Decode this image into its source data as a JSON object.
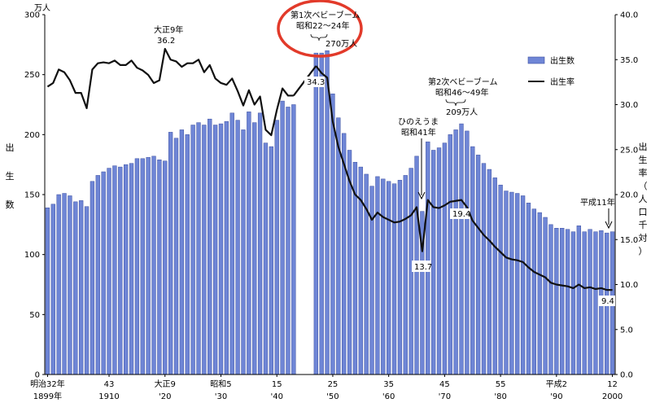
{
  "chart_data": {
    "type": "bar",
    "left_unit": "万人",
    "left_axis_label": [
      "出",
      "生",
      "数"
    ],
    "right_axis_label": [
      "出",
      "生",
      "率",
      "（",
      "人",
      "口",
      "千",
      "対",
      "）"
    ],
    "left_ylim": [
      0,
      300
    ],
    "left_ticks": [
      "0",
      "50",
      "100",
      "150",
      "200",
      "250",
      "300"
    ],
    "right_ylim": [
      0,
      40
    ],
    "right_ticks": [
      "0.0",
      "5.0",
      "10.0",
      "15.0",
      "20.0",
      "25.0",
      "30.0",
      "35.0",
      "40.0"
    ],
    "grid": false,
    "legend_position": "top-right",
    "x_tick_labels": [
      {
        "year": 1899,
        "line1": "明治32年",
        "line2": "1899年"
      },
      {
        "year": 1910,
        "line1": "43",
        "line2": "1910"
      },
      {
        "year": 1920,
        "line1": "大正9",
        "line2": "'20"
      },
      {
        "year": 1930,
        "line1": "昭和5",
        "line2": "'30"
      },
      {
        "year": 1940,
        "line1": "15",
        "line2": "'40"
      },
      {
        "year": 1950,
        "line1": "25",
        "line2": "'50"
      },
      {
        "year": 1960,
        "line1": "35",
        "line2": "'60"
      },
      {
        "year": 1970,
        "line1": "45",
        "line2": "'70"
      },
      {
        "year": 1980,
        "line1": "55",
        "line2": "'80"
      },
      {
        "year": 1990,
        "line1": "平成2",
        "line2": "'90"
      },
      {
        "year": 2000,
        "line1": "12",
        "line2": "2000"
      }
    ],
    "series": [
      {
        "name": "出生数",
        "type": "bar",
        "axis": "left",
        "color": "#6f86d6",
        "x": [
          1899,
          1900,
          1901,
          1902,
          1903,
          1904,
          1905,
          1906,
          1907,
          1908,
          1909,
          1910,
          1911,
          1912,
          1913,
          1914,
          1915,
          1916,
          1917,
          1918,
          1919,
          1920,
          1921,
          1922,
          1923,
          1924,
          1925,
          1926,
          1927,
          1928,
          1929,
          1930,
          1931,
          1932,
          1933,
          1934,
          1935,
          1936,
          1937,
          1938,
          1939,
          1940,
          1941,
          1942,
          1943,
          1947,
          1948,
          1949,
          1950,
          1951,
          1952,
          1953,
          1954,
          1955,
          1956,
          1957,
          1958,
          1959,
          1960,
          1961,
          1962,
          1963,
          1964,
          1965,
          1966,
          1967,
          1968,
          1969,
          1970,
          1971,
          1972,
          1973,
          1974,
          1975,
          1976,
          1977,
          1978,
          1979,
          1980,
          1981,
          1982,
          1983,
          1984,
          1985,
          1986,
          1987,
          1988,
          1989,
          1990,
          1991,
          1992,
          1993,
          1994,
          1995,
          1996,
          1997,
          1998,
          1999,
          2000
        ],
        "values": [
          139,
          142,
          150,
          151,
          149,
          144,
          145,
          140,
          161,
          166,
          169,
          172,
          174,
          173,
          175,
          176,
          180,
          180,
          181,
          182,
          179,
          178,
          202,
          197,
          204,
          200,
          208,
          210,
          208,
          213,
          208,
          209,
          211,
          218,
          212,
          204,
          219,
          210,
          218,
          193,
          190,
          212,
          228,
          223,
          225,
          268,
          268,
          270,
          234,
          214,
          201,
          187,
          177,
          173,
          167,
          157,
          165,
          163,
          161,
          159,
          162,
          166,
          172,
          182,
          136,
          194,
          187,
          189,
          193,
          200,
          204,
          209,
          203,
          190,
          183,
          176,
          171,
          164,
          158,
          153,
          152,
          151,
          149,
          143,
          138,
          135,
          131,
          125,
          122,
          122,
          121,
          119,
          124,
          119,
          121,
          119,
          120,
          118,
          119
        ]
      },
      {
        "name": "出生率",
        "type": "line",
        "axis": "right",
        "color": "#111111",
        "x": [
          1899,
          1900,
          1901,
          1902,
          1903,
          1904,
          1905,
          1906,
          1907,
          1908,
          1909,
          1910,
          1911,
          1912,
          1913,
          1914,
          1915,
          1916,
          1917,
          1918,
          1919,
          1920,
          1921,
          1922,
          1923,
          1924,
          1925,
          1926,
          1927,
          1928,
          1929,
          1930,
          1931,
          1932,
          1933,
          1934,
          1935,
          1936,
          1937,
          1938,
          1939,
          1940,
          1941,
          1942,
          1943,
          1947,
          1948,
          1949,
          1950,
          1951,
          1952,
          1953,
          1954,
          1955,
          1956,
          1957,
          1958,
          1959,
          1960,
          1961,
          1962,
          1963,
          1964,
          1965,
          1966,
          1967,
          1968,
          1969,
          1970,
          1971,
          1972,
          1973,
          1974,
          1975,
          1976,
          1977,
          1978,
          1979,
          1980,
          1981,
          1982,
          1983,
          1984,
          1985,
          1986,
          1987,
          1988,
          1989,
          1990,
          1991,
          1992,
          1993,
          1994,
          1995,
          1996,
          1997,
          1998,
          1999,
          2000
        ],
        "values": [
          32.0,
          32.4,
          33.9,
          33.6,
          32.7,
          31.3,
          31.3,
          29.6,
          33.9,
          34.6,
          34.7,
          34.6,
          34.9,
          34.4,
          34.4,
          34.9,
          34.1,
          33.8,
          33.3,
          32.4,
          32.7,
          36.2,
          35.0,
          34.8,
          34.2,
          34.6,
          34.6,
          35.0,
          33.6,
          34.4,
          32.9,
          32.4,
          32.2,
          32.9,
          31.5,
          29.9,
          31.6,
          30.0,
          30.9,
          27.2,
          26.6,
          29.4,
          31.8,
          31.0,
          31.0,
          34.3,
          33.5,
          33.0,
          28.1,
          25.3,
          23.4,
          21.5,
          20.0,
          19.4,
          18.4,
          17.2,
          18.0,
          17.5,
          17.2,
          16.9,
          17.0,
          17.3,
          17.7,
          18.6,
          13.7,
          19.4,
          18.6,
          18.5,
          18.8,
          19.2,
          19.3,
          19.4,
          18.6,
          17.1,
          16.3,
          15.5,
          14.9,
          14.2,
          13.6,
          13.0,
          12.8,
          12.7,
          12.5,
          11.9,
          11.4,
          11.1,
          10.8,
          10.2,
          10.0,
          9.9,
          9.8,
          9.6,
          10.0,
          9.6,
          9.7,
          9.5,
          9.6,
          9.4,
          9.4
        ]
      }
    ],
    "annotations": {
      "taisho_year": "大正9年",
      "taisho_value": "36.2",
      "boom1_title": "第1次ベビーブーム",
      "boom1_period": "昭和22～24年",
      "boom1_births": "270万人",
      "boom1_rate": "34.3",
      "hinoe_title": "ひのえうま",
      "hinoe_year": "昭和41年",
      "hinoe_rate": "13.7",
      "boom2_title": "第2次ベビーブーム",
      "boom2_period": "昭和46～49年",
      "boom2_births": "209万人",
      "boom2_rate": "19.4",
      "heisei_year": "平成11年",
      "heisei_rate": "9.4"
    },
    "highlight_color": "#e23a2a"
  }
}
